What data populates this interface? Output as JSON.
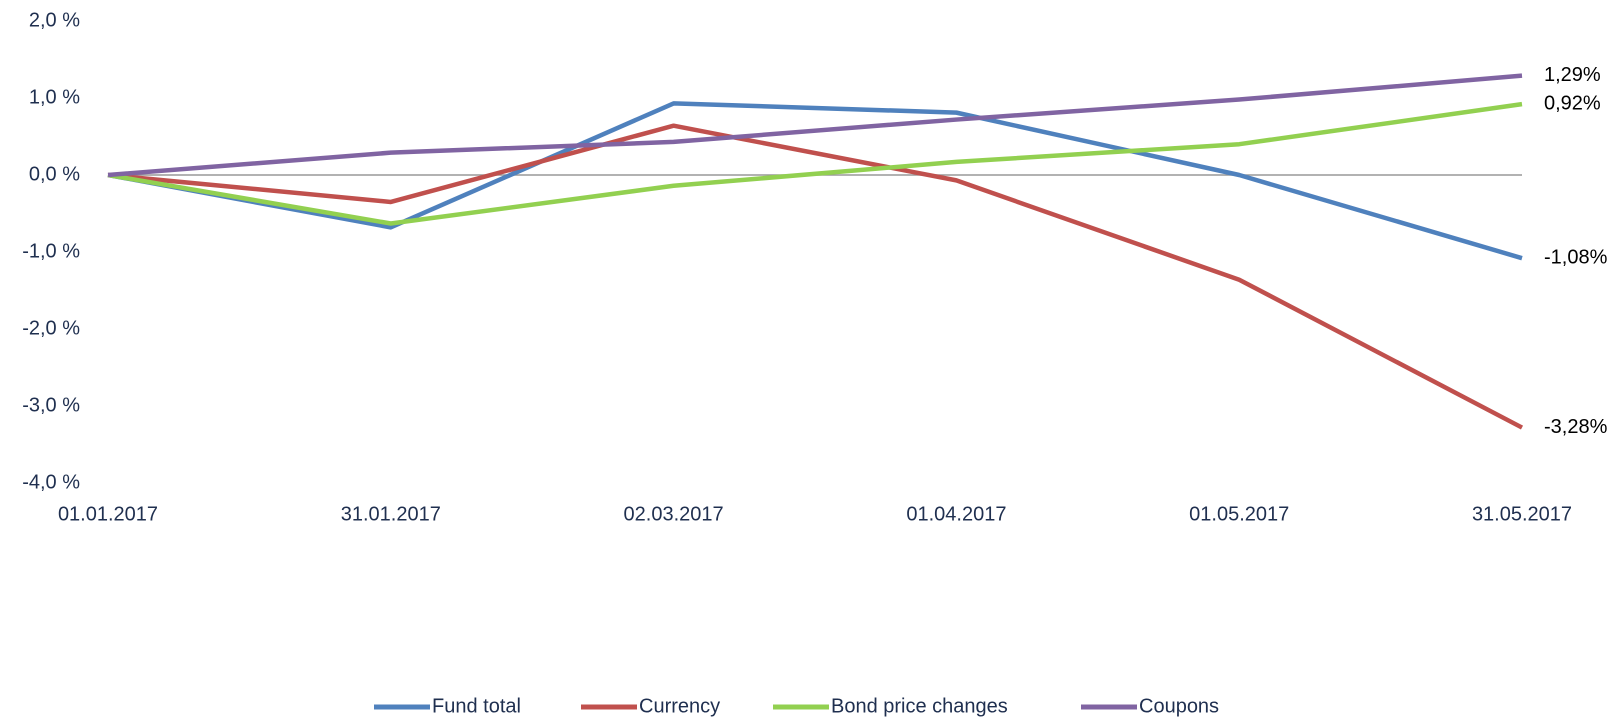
{
  "chart_data": {
    "type": "line",
    "categories": [
      "01.01.2017",
      "31.01.2017",
      "02.03.2017",
      "01.04.2017",
      "01.05.2017",
      "31.05.2017"
    ],
    "series": [
      {
        "name": "Fund total",
        "color": "#4f81bd",
        "values": [
          0,
          -0.68,
          0.93,
          0.81,
          0.0,
          -1.08
        ],
        "value_labels": [
          null,
          null,
          null,
          null,
          null,
          "-1,08%"
        ]
      },
      {
        "name": "Currency",
        "color": "#c0504d",
        "values": [
          0,
          -0.35,
          0.64,
          -0.07,
          -1.36,
          -3.28
        ],
        "value_labels": [
          null,
          null,
          null,
          null,
          null,
          "-3,28%"
        ]
      },
      {
        "name": "Bond price changes",
        "color": "#92d050",
        "values": [
          0,
          -0.63,
          -0.14,
          0.17,
          0.4,
          0.92
        ],
        "value_labels": [
          null,
          null,
          null,
          null,
          null,
          "0,92%"
        ]
      },
      {
        "name": "Coupons",
        "color": "#8064a2",
        "values": [
          0,
          0.29,
          0.43,
          0.72,
          0.98,
          1.29
        ],
        "value_labels": [
          null,
          null,
          null,
          null,
          null,
          "1,29%"
        ]
      }
    ],
    "ylim": [
      -4,
      2
    ],
    "yticks": [
      {
        "value": 2,
        "label": "2,0 %"
      },
      {
        "value": 1,
        "label": "1,0 %"
      },
      {
        "value": 0,
        "label": "0,0 %"
      },
      {
        "value": -1,
        "label": "-1,0 %"
      },
      {
        "value": -2,
        "label": "-2,0 %"
      },
      {
        "value": -3,
        "label": "-3,0 %"
      },
      {
        "value": -4,
        "label": "-4,0 %"
      }
    ],
    "grid": false,
    "legend": "bottom"
  }
}
